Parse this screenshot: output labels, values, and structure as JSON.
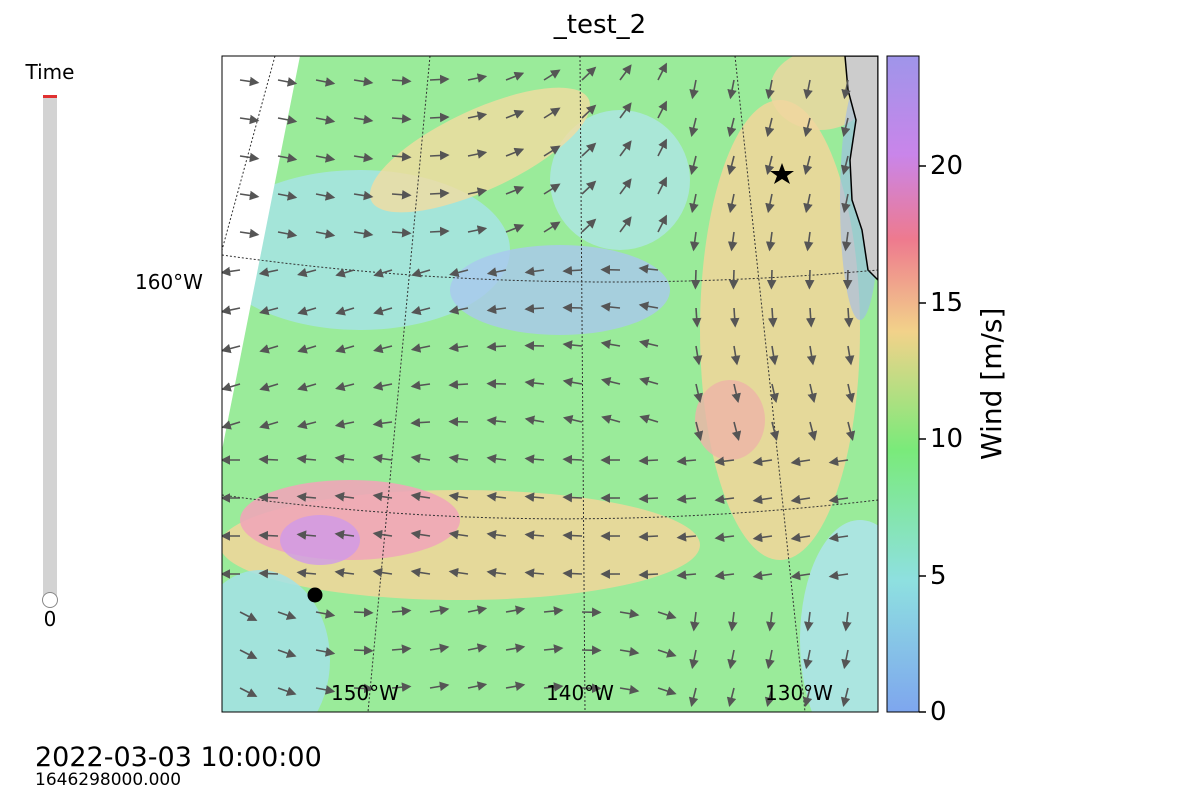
{
  "title": "_test_2",
  "slider": {
    "label": "Time",
    "value": "0"
  },
  "timestamp": "2022-03-03 10:00:00",
  "epoch": "1646298000.000",
  "map": {
    "lat_label": "160°W",
    "lon_labels": [
      "150°W",
      "140°W",
      "130°W"
    ],
    "markers": [
      {
        "name": "star-marker",
        "shape": "star"
      },
      {
        "name": "dot-marker",
        "shape": "circle"
      }
    ]
  },
  "colorbar": {
    "label": "Wind [m/s]",
    "ticks": [
      "0",
      "5",
      "10",
      "15",
      "20"
    ],
    "range": [
      0,
      24
    ],
    "colors": [
      "#7ea6ee",
      "#8ee0e0",
      "#7aea7a",
      "#f2d28a",
      "#ee7a8e",
      "#bf85ea",
      "#9f95ea"
    ]
  }
}
